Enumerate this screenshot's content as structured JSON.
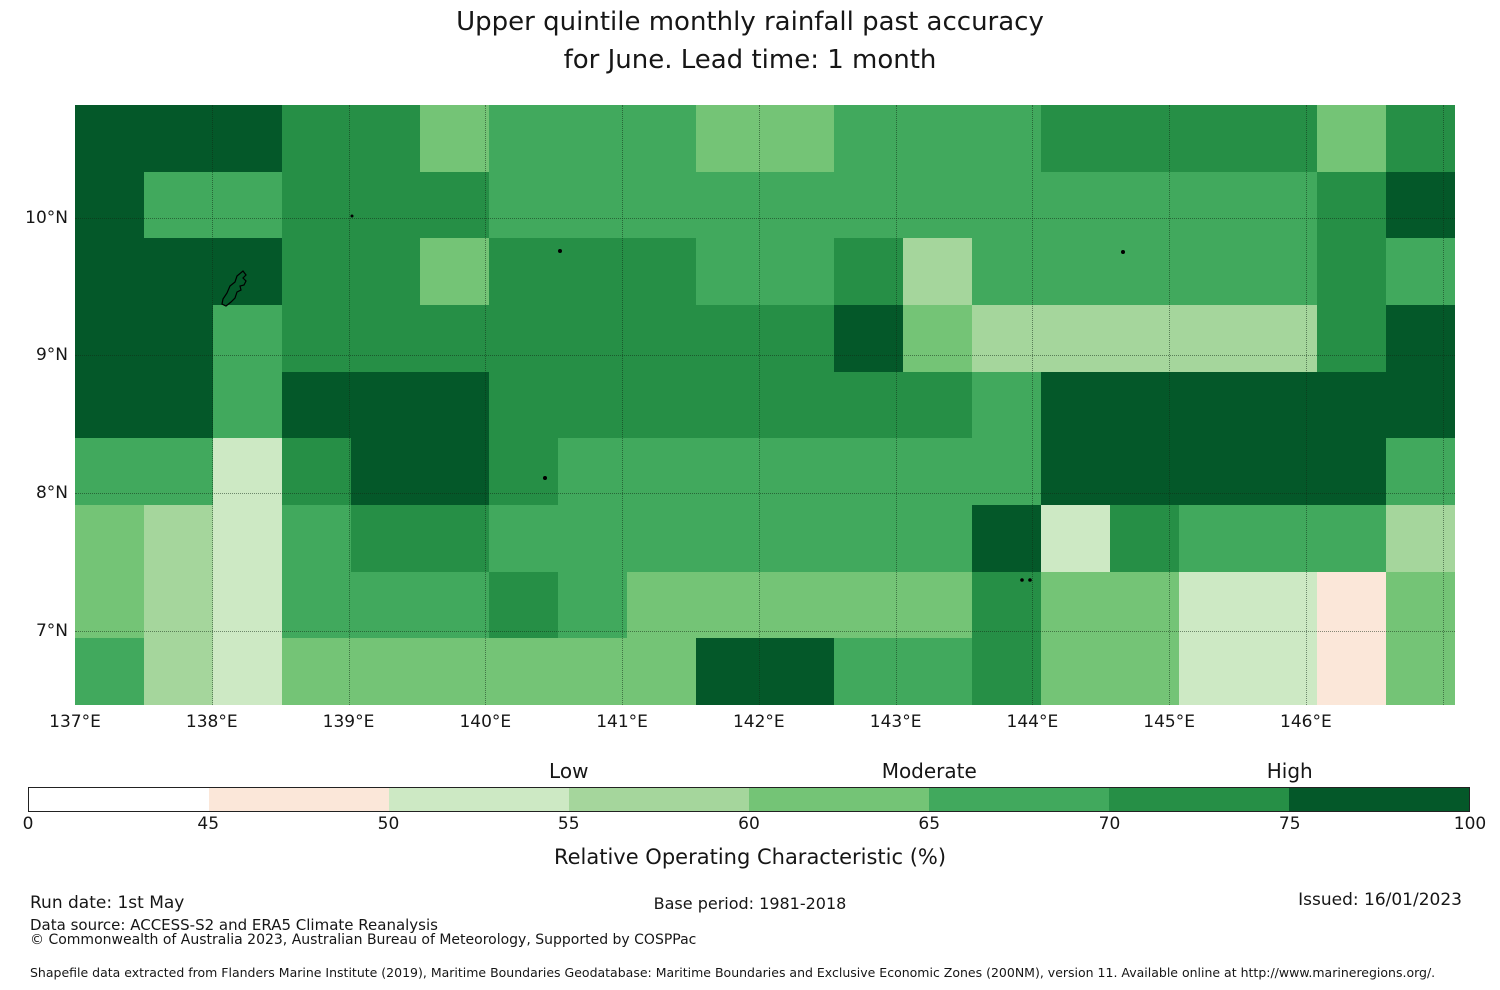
{
  "title": {
    "line1": "Upper quintile monthly rainfall past accuracy",
    "line2": "for June. Lead time: 1 month"
  },
  "chart_data": {
    "type": "heatmap",
    "title": "Upper quintile monthly rainfall past accuracy for June. Lead time: 1 month",
    "description": "Map heatmap of past forecast accuracy (ROC %) on a lon/lat grid; 20 columns (west to east) by 9 rows (north to south).",
    "lon_range": [
      137.0,
      147.09
    ],
    "lat_range": [
      6.46,
      10.82
    ],
    "lon_ticks": [
      {
        "v": 137,
        "label": "137°E"
      },
      {
        "v": 138,
        "label": "138°E"
      },
      {
        "v": 139,
        "label": "139°E"
      },
      {
        "v": 140,
        "label": "140°E"
      },
      {
        "v": 141,
        "label": "141°E"
      },
      {
        "v": 142,
        "label": "142°E"
      },
      {
        "v": 143,
        "label": "143°E"
      },
      {
        "v": 144,
        "label": "144°E"
      },
      {
        "v": 145,
        "label": "145°E"
      },
      {
        "v": 146,
        "label": "146°E"
      }
    ],
    "lat_ticks": [
      {
        "v": 10,
        "label": "10°N"
      },
      {
        "v": 9,
        "label": "9°N"
      },
      {
        "v": 8,
        "label": "8°N"
      },
      {
        "v": 7,
        "label": "7°N"
      }
    ],
    "gridline_lons": [
      138,
      139,
      140,
      141,
      142,
      143,
      144,
      145,
      146,
      147
    ],
    "gridline_lats": [
      10,
      9,
      8,
      7
    ],
    "bin_edges_pct": [
      0,
      45,
      50,
      55,
      60,
      65,
      70,
      75,
      100
    ],
    "bin_labels": [
      "0-45",
      "45-50",
      "50-55",
      "55-60",
      "60-65",
      "65-70",
      "70-75",
      "75-100"
    ],
    "bin_mid_pct": [
      22.5,
      47.5,
      52.5,
      57.5,
      62.5,
      67.5,
      72.5,
      87.5
    ],
    "bin_colors": [
      "#ffffff",
      "#fbe7d9",
      "#cde9c4",
      "#a5d69c",
      "#74c476",
      "#41a95d",
      "#268f46",
      "#045829"
    ],
    "grid_bin_index": [
      [
        7,
        7,
        7,
        6,
        6,
        4,
        5,
        5,
        5,
        4,
        4,
        5,
        5,
        5,
        6,
        6,
        6,
        6,
        4,
        6
      ],
      [
        7,
        5,
        5,
        6,
        6,
        6,
        5,
        5,
        5,
        5,
        5,
        5,
        5,
        5,
        5,
        5,
        5,
        5,
        6,
        7
      ],
      [
        7,
        7,
        7,
        6,
        6,
        4,
        6,
        6,
        6,
        5,
        5,
        6,
        3,
        5,
        5,
        5,
        5,
        5,
        6,
        5
      ],
      [
        7,
        7,
        5,
        6,
        6,
        6,
        6,
        6,
        6,
        6,
        6,
        7,
        4,
        3,
        3,
        3,
        3,
        3,
        6,
        7
      ],
      [
        7,
        7,
        5,
        7,
        7,
        7,
        6,
        6,
        6,
        6,
        6,
        6,
        6,
        5,
        7,
        7,
        7,
        7,
        7,
        7
      ],
      [
        5,
        5,
        2,
        6,
        7,
        7,
        6,
        5,
        5,
        5,
        5,
        5,
        5,
        5,
        7,
        7,
        7,
        7,
        7,
        5
      ],
      [
        4,
        3,
        2,
        5,
        6,
        6,
        5,
        5,
        5,
        5,
        5,
        5,
        5,
        7,
        2,
        6,
        5,
        5,
        5,
        3
      ],
      [
        4,
        3,
        2,
        5,
        5,
        5,
        6,
        5,
        4,
        4,
        4,
        4,
        4,
        6,
        4,
        4,
        2,
        2,
        1,
        4
      ],
      [
        5,
        3,
        2,
        4,
        4,
        4,
        4,
        4,
        4,
        7,
        7,
        5,
        5,
        6,
        4,
        4,
        2,
        2,
        1,
        4
      ]
    ],
    "legend_position": "bottom",
    "legend_title": "Relative Operating Characteristic (%)",
    "zone_labels": [
      {
        "label": "Low",
        "boundary_index": 3
      },
      {
        "label": "Moderate",
        "boundary_index": 5
      },
      {
        "label": "High",
        "boundary_index": 7
      }
    ]
  },
  "colorbar": {
    "tick_labels": [
      "0",
      "45",
      "50",
      "55",
      "60",
      "65",
      "70",
      "75",
      "100"
    ],
    "axis_label": "Relative Operating Characteristic (%)"
  },
  "footer": {
    "run_date": "Run date: 1st May",
    "base_period": "Base period: 1981-2018",
    "issued": "Issued: 16/01/2023",
    "data_source": "Data source: ACCESS-S2 and ERA5 Climate Reanalysis",
    "copyright": "© Commonwealth of Australia 2023, Australian Bureau of Meteorology, Supported by COSPPac",
    "shapefile_note": "Shapefile data extracted from Flanders Marine Institute (2019), Maritime Boundaries Geodatabase: Maritime Boundaries and Exclusive Economic Zones (200NM), version 11. Available online at http://www.marineregions.org/."
  }
}
